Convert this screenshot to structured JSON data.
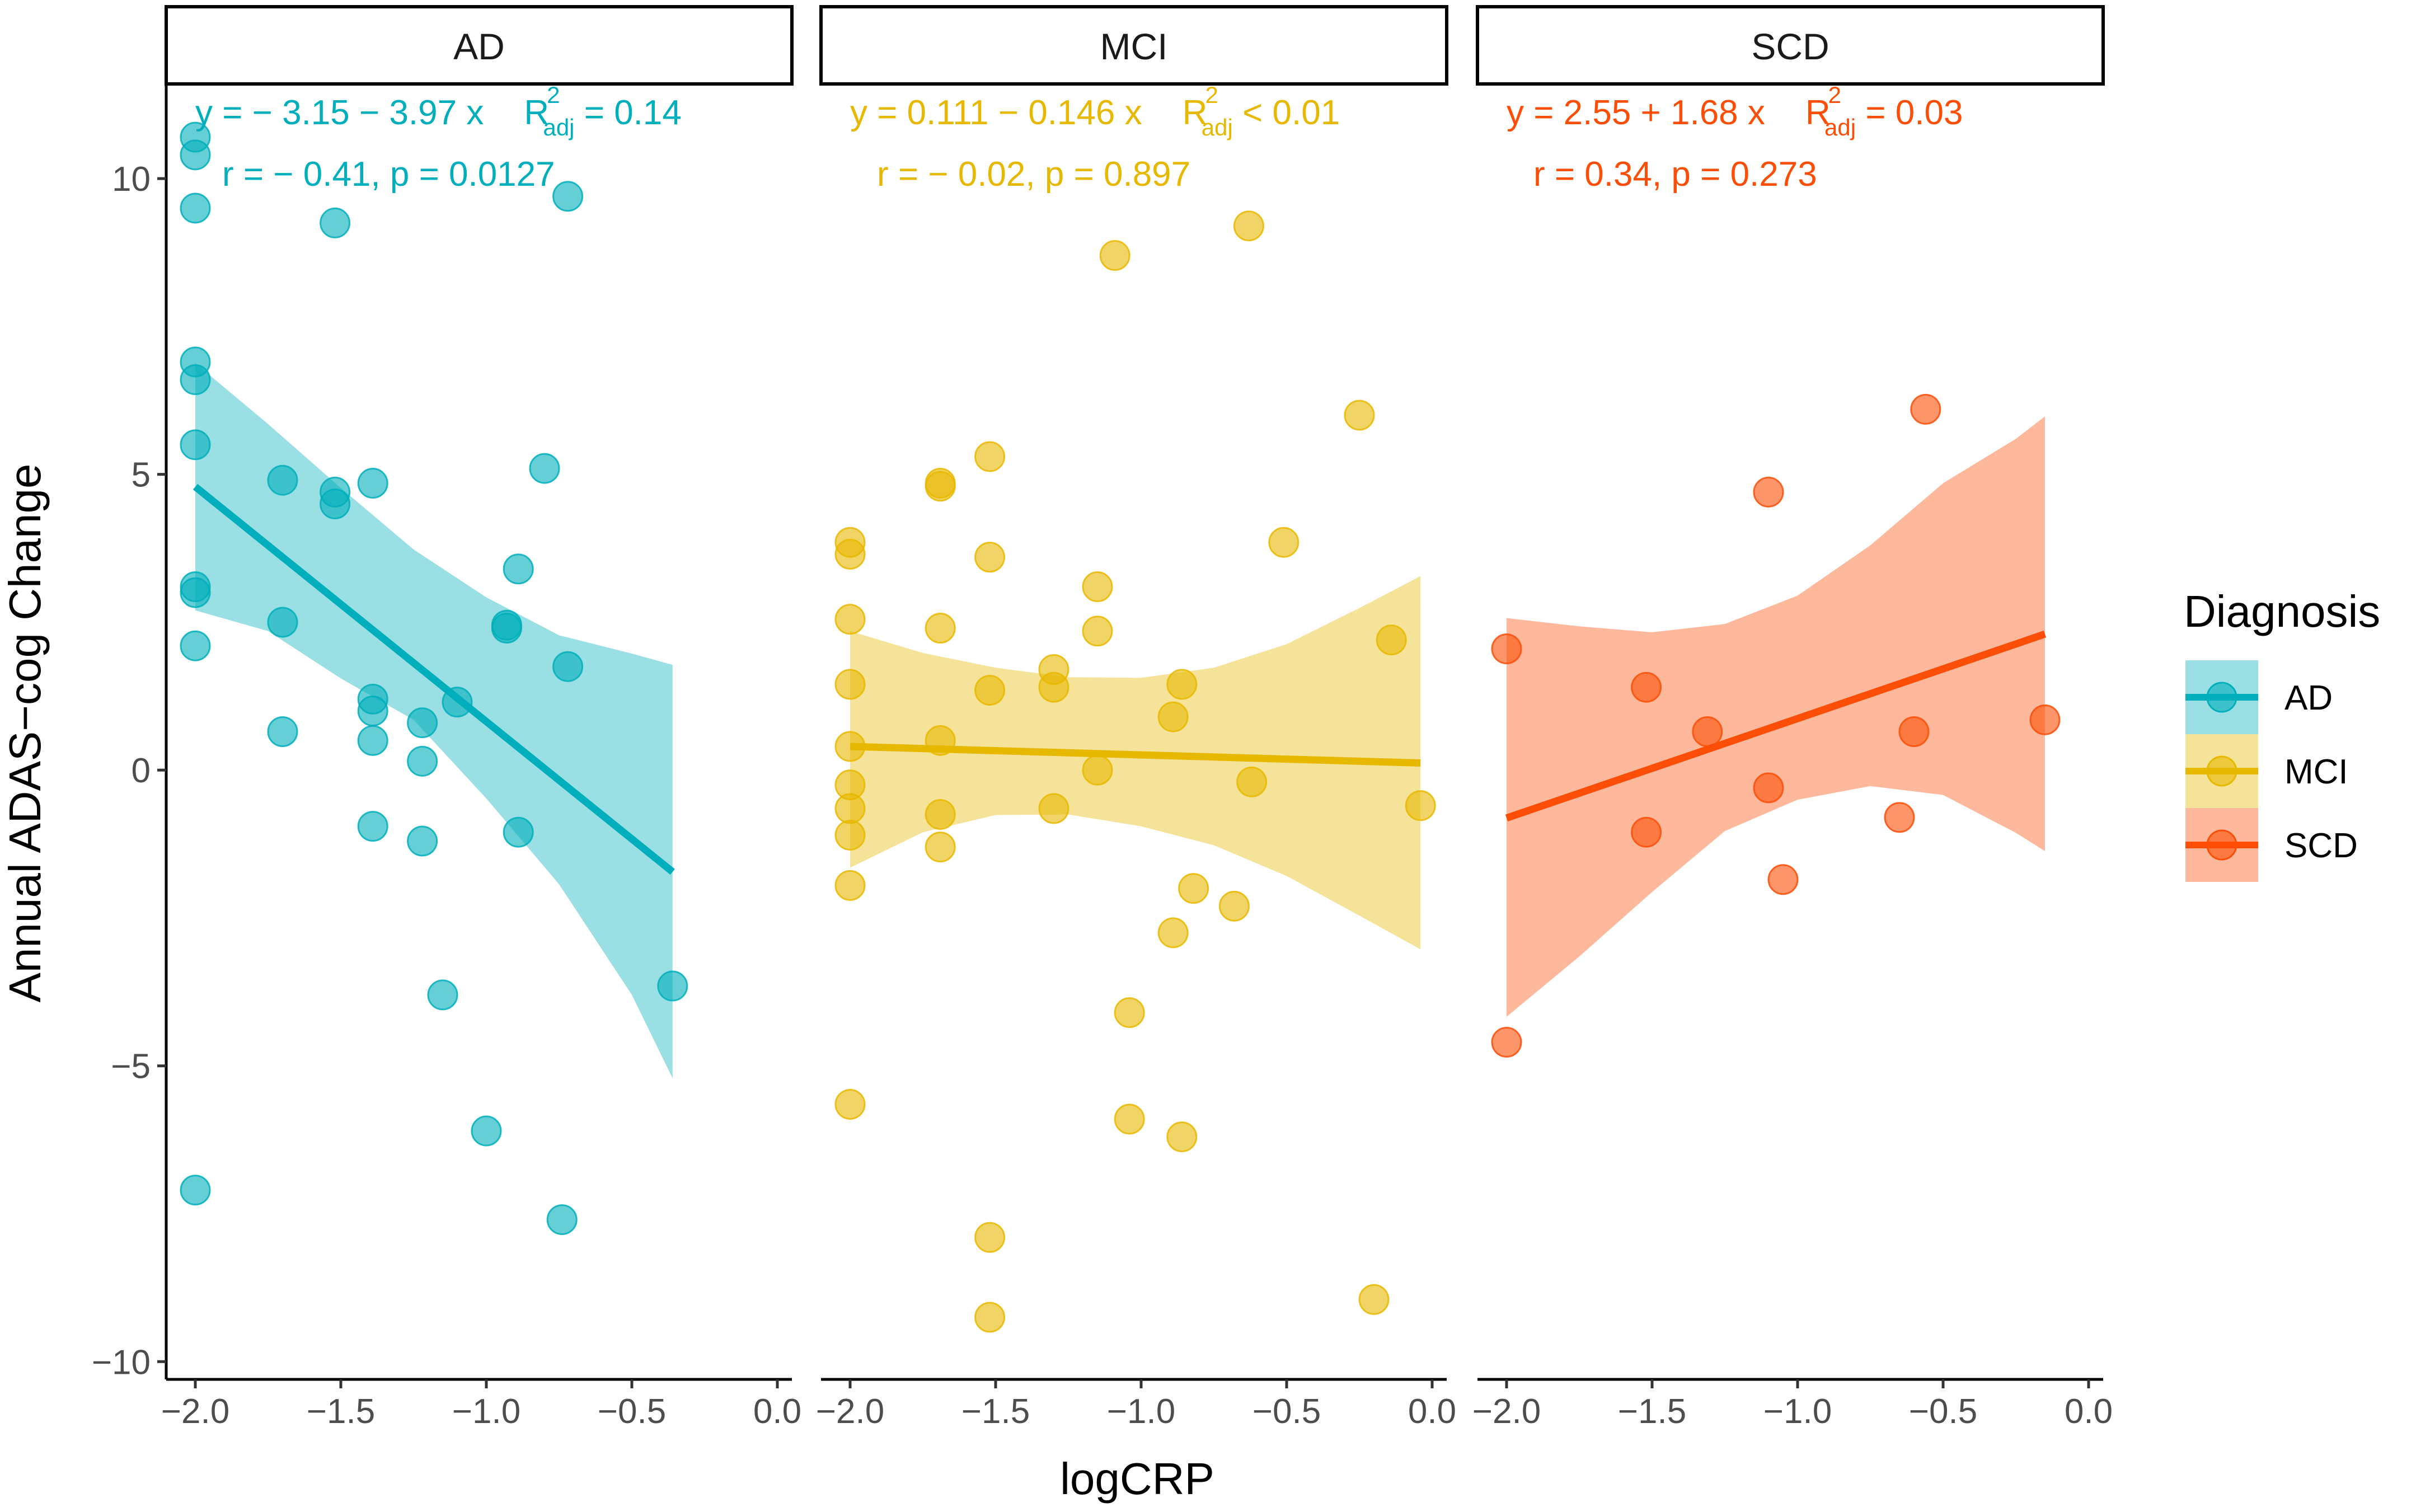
{
  "chart_data": {
    "type": "scatter",
    "facet_by": "Diagnosis",
    "xlabel": "logCRP",
    "ylabel": "Annual ADAS−cog Change",
    "xlim": [
      -2.1,
      0.05
    ],
    "ylim": [
      -10.3,
      11.6
    ],
    "x_ticks": [
      -2.0,
      -1.5,
      -1.0,
      -0.5,
      0.0
    ],
    "x_tick_labels": [
      "−2.0",
      "−1.5",
      "−1.0",
      "−0.5",
      "0.0"
    ],
    "y_ticks": [
      10,
      5,
      0,
      -5,
      -10
    ],
    "y_tick_labels": [
      "10",
      "5",
      "0",
      "−5",
      "−10"
    ],
    "grid": false,
    "legend": {
      "title": "Diagnosis",
      "position": "right",
      "entries": [
        "AD",
        "MCI",
        "SCD"
      ]
    },
    "series": [
      {
        "name": "AD",
        "color": "#00AFBB",
        "equation": "y = − 3.15 − 3.97 x",
        "r2_prefix": "R",
        "r2_sup": "2",
        "r2_sub": "adj",
        "r2_value": " = 0.14",
        "r_text": "r = − 0.41, p = 0.0127",
        "fit": {
          "x": [
            -2.0,
            -0.36
          ],
          "y": [
            4.79,
            -1.72
          ]
        },
        "ci": {
          "x": [
            -2.0,
            -1.75,
            -1.5,
            -1.25,
            -1.0,
            -0.75,
            -0.5,
            -0.36
          ],
          "upper": [
            6.88,
            5.85,
            4.77,
            3.73,
            2.92,
            2.28,
            1.97,
            1.78
          ],
          "lower": [
            2.7,
            2.35,
            1.55,
            0.85,
            -0.48,
            -1.93,
            -3.8,
            -5.21
          ]
        },
        "points": [
          {
            "x": -2.0,
            "y": 10.7
          },
          {
            "x": -2.0,
            "y": 10.4
          },
          {
            "x": -2.0,
            "y": 9.5
          },
          {
            "x": -2.0,
            "y": 6.9
          },
          {
            "x": -2.0,
            "y": 6.6
          },
          {
            "x": -2.0,
            "y": 5.5
          },
          {
            "x": -2.0,
            "y": 3.1
          },
          {
            "x": -2.0,
            "y": 3.0
          },
          {
            "x": -2.0,
            "y": 2.1
          },
          {
            "x": -2.0,
            "y": -7.1
          },
          {
            "x": -1.52,
            "y": 9.25
          },
          {
            "x": -1.7,
            "y": 4.9
          },
          {
            "x": -1.52,
            "y": 4.7
          },
          {
            "x": -1.52,
            "y": 4.5
          },
          {
            "x": -1.39,
            "y": 4.85
          },
          {
            "x": -1.7,
            "y": 2.5
          },
          {
            "x": -1.7,
            "y": 0.65
          },
          {
            "x": -1.39,
            "y": 1.2
          },
          {
            "x": -1.39,
            "y": 1.0
          },
          {
            "x": -1.39,
            "y": 0.5
          },
          {
            "x": -1.39,
            "y": -0.95
          },
          {
            "x": -1.22,
            "y": 0.8
          },
          {
            "x": -1.22,
            "y": 0.15
          },
          {
            "x": -1.22,
            "y": -1.2
          },
          {
            "x": -1.1,
            "y": 1.15
          },
          {
            "x": -1.15,
            "y": -3.8
          },
          {
            "x": -1.0,
            "y": -6.1
          },
          {
            "x": -0.93,
            "y": 2.4
          },
          {
            "x": -0.93,
            "y": 2.45
          },
          {
            "x": -0.89,
            "y": 3.4
          },
          {
            "x": -0.89,
            "y": -1.05
          },
          {
            "x": -0.8,
            "y": 5.1
          },
          {
            "x": -0.72,
            "y": 9.7
          },
          {
            "x": -0.72,
            "y": 1.75
          },
          {
            "x": -0.74,
            "y": -7.6
          },
          {
            "x": -0.36,
            "y": -3.65
          }
        ]
      },
      {
        "name": "MCI",
        "color": "#E7B800",
        "equation": "y = 0.111 − 0.146 x",
        "r2_prefix": "R",
        "r2_sup": "2",
        "r2_sub": "adj",
        "r2_value": " < 0.01",
        "r_text": "r = − 0.02, p = 0.897",
        "fit": {
          "x": [
            -2.0,
            -0.04
          ],
          "y": [
            0.4,
            0.12
          ]
        },
        "ci": {
          "x": [
            -2.0,
            -1.75,
            -1.5,
            -1.25,
            -1.0,
            -0.75,
            -0.5,
            -0.25,
            -0.04
          ],
          "upper": [
            2.35,
            1.98,
            1.73,
            1.57,
            1.56,
            1.73,
            2.13,
            2.74,
            3.28
          ],
          "lower": [
            -1.65,
            -1.05,
            -0.76,
            -0.75,
            -0.95,
            -1.27,
            -1.79,
            -2.46,
            -3.03
          ]
        },
        "points": [
          {
            "x": -2.0,
            "y": 3.85
          },
          {
            "x": -2.0,
            "y": 3.65
          },
          {
            "x": -2.0,
            "y": 2.55
          },
          {
            "x": -2.0,
            "y": 1.45
          },
          {
            "x": -2.0,
            "y": 0.4
          },
          {
            "x": -2.0,
            "y": -0.25
          },
          {
            "x": -2.0,
            "y": -0.65
          },
          {
            "x": -2.0,
            "y": -1.1
          },
          {
            "x": -2.0,
            "y": -1.95
          },
          {
            "x": -2.0,
            "y": -5.65
          },
          {
            "x": -1.69,
            "y": 4.85
          },
          {
            "x": -1.69,
            "y": 4.8
          },
          {
            "x": -1.69,
            "y": 2.4
          },
          {
            "x": -1.69,
            "y": 0.5
          },
          {
            "x": -1.69,
            "y": -0.75
          },
          {
            "x": -1.69,
            "y": -1.3
          },
          {
            "x": -1.52,
            "y": 5.3
          },
          {
            "x": -1.52,
            "y": 3.6
          },
          {
            "x": -1.52,
            "y": 1.35
          },
          {
            "x": -1.52,
            "y": -7.9
          },
          {
            "x": -1.52,
            "y": -9.25
          },
          {
            "x": -1.3,
            "y": 1.7
          },
          {
            "x": -1.3,
            "y": 1.4
          },
          {
            "x": -1.3,
            "y": -0.65
          },
          {
            "x": -1.15,
            "y": 3.1
          },
          {
            "x": -1.15,
            "y": 2.35
          },
          {
            "x": -1.15,
            "y": 0.0
          },
          {
            "x": -1.09,
            "y": 8.7
          },
          {
            "x": -1.04,
            "y": -4.1
          },
          {
            "x": -1.04,
            "y": -5.9
          },
          {
            "x": -0.89,
            "y": 0.9
          },
          {
            "x": -0.89,
            "y": -2.75
          },
          {
            "x": -0.86,
            "y": 1.45
          },
          {
            "x": -0.86,
            "y": -6.2
          },
          {
            "x": -0.82,
            "y": -2.0
          },
          {
            "x": -0.68,
            "y": -2.3
          },
          {
            "x": -0.63,
            "y": 9.2
          },
          {
            "x": -0.62,
            "y": -0.2
          },
          {
            "x": -0.51,
            "y": 3.85
          },
          {
            "x": -0.25,
            "y": 6.0
          },
          {
            "x": -0.2,
            "y": -8.95
          },
          {
            "x": -0.14,
            "y": 2.2
          },
          {
            "x": -0.04,
            "y": -0.6
          }
        ]
      },
      {
        "name": "SCD",
        "color": "#FC4E07",
        "equation": "y = 2.55 + 1.68 x",
        "r2_prefix": "R",
        "r2_sup": "2",
        "r2_sub": "adj",
        "r2_value": " = 0.03",
        "r_text": "r = 0.34, p = 0.273",
        "fit": {
          "x": [
            -2.0,
            -0.15
          ],
          "y": [
            -0.81,
            2.3
          ]
        },
        "ci": {
          "x": [
            -2.0,
            -1.75,
            -1.5,
            -1.25,
            -1.0,
            -0.75,
            -0.5,
            -0.25,
            -0.15
          ],
          "upper": [
            2.57,
            2.43,
            2.33,
            2.47,
            2.95,
            3.8,
            4.85,
            5.6,
            5.98
          ],
          "lower": [
            -4.17,
            -3.15,
            -2.06,
            -1.03,
            -0.5,
            -0.27,
            -0.42,
            -1.06,
            -1.37
          ]
        },
        "points": [
          {
            "x": -2.0,
            "y": 2.05
          },
          {
            "x": -2.0,
            "y": -4.6
          },
          {
            "x": -1.52,
            "y": 1.4
          },
          {
            "x": -1.52,
            "y": -1.05
          },
          {
            "x": -1.31,
            "y": 0.65
          },
          {
            "x": -1.1,
            "y": 4.7
          },
          {
            "x": -1.1,
            "y": -0.3
          },
          {
            "x": -1.05,
            "y": -1.85
          },
          {
            "x": -0.65,
            "y": -0.8
          },
          {
            "x": -0.6,
            "y": 0.65
          },
          {
            "x": -0.56,
            "y": 6.1
          },
          {
            "x": -0.15,
            "y": 0.85
          }
        ]
      }
    ]
  }
}
